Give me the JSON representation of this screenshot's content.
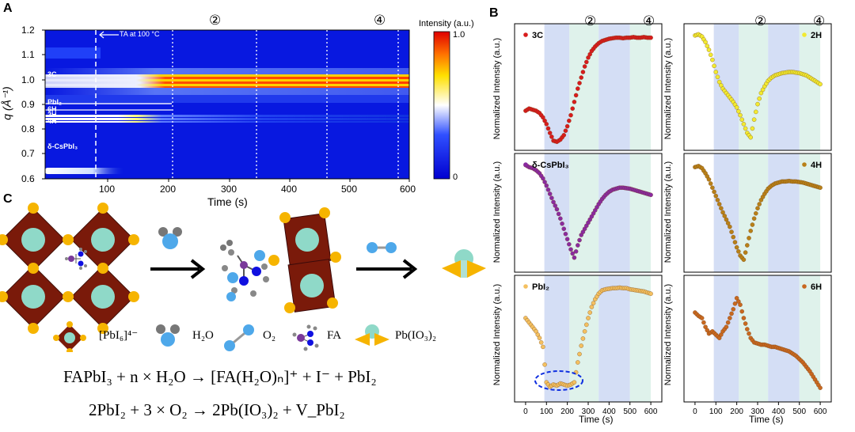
{
  "panelA": {
    "letter": "A",
    "ylabel": "q (Å⁻¹)",
    "xlabel": "Time (s)",
    "yticks": [
      "1.2",
      "1.1",
      "1.0",
      "0.9",
      "0.8",
      "0.7",
      "0.6"
    ],
    "xticks": [
      "100",
      "200",
      "300",
      "400",
      "500",
      "600"
    ],
    "annotation": "TA at 100 °C",
    "phases": [
      "3C",
      "PbI₂",
      "6H",
      "2H",
      "4H",
      "δ-CsPbI₃"
    ],
    "stage_marks": [
      "②",
      "④"
    ],
    "colorbar": {
      "title": "Intensity (a.u.)",
      "max": "1.0",
      "min": "0"
    },
    "colors": {
      "low": "#0010e0",
      "mid": "#ffffff",
      "high": "#ff2000"
    }
  },
  "panelB": {
    "letter": "B",
    "ylabel": "Normalized Intensity (a.u.)",
    "xlabel": "Time (s)",
    "xticks": [
      "0",
      "100",
      "200",
      "300",
      "400",
      "500",
      "600"
    ],
    "stage_marks": [
      "②",
      "④"
    ],
    "subplots": [
      {
        "name": "3C",
        "color": "#d81c1c",
        "y": [
          0.3,
          0.32,
          0.31,
          0.3,
          0.28,
          0.24,
          0.18,
          0.1,
          0.03,
          0.02,
          0.04,
          0.08,
          0.16,
          0.26,
          0.38,
          0.5,
          0.6,
          0.7,
          0.78,
          0.84,
          0.88,
          0.91,
          0.93,
          0.94,
          0.95,
          0.955,
          0.96,
          0.96,
          0.955,
          0.96,
          0.96,
          0.965,
          0.96,
          0.96,
          0.965,
          0.96,
          0.96
        ]
      },
      {
        "name": "2H",
        "color": "#f2ea30",
        "y": [
          0.98,
          0.99,
          0.97,
          0.92,
          0.85,
          0.76,
          0.65,
          0.56,
          0.5,
          0.46,
          0.42,
          0.38,
          0.33,
          0.26,
          0.18,
          0.1,
          0.06,
          0.22,
          0.36,
          0.46,
          0.52,
          0.57,
          0.6,
          0.62,
          0.63,
          0.64,
          0.645,
          0.65,
          0.65,
          0.645,
          0.64,
          0.63,
          0.62,
          0.6,
          0.58,
          0.56,
          0.54
        ]
      },
      {
        "name": "δ-CsPbI₃",
        "color": "#8a2aa0",
        "y": [
          0.98,
          0.96,
          0.95,
          0.93,
          0.9,
          0.85,
          0.78,
          0.7,
          0.62,
          0.55,
          0.46,
          0.36,
          0.26,
          0.16,
          0.08,
          0.2,
          0.3,
          0.36,
          0.42,
          0.48,
          0.54,
          0.6,
          0.65,
          0.69,
          0.72,
          0.74,
          0.75,
          0.76,
          0.76,
          0.755,
          0.75,
          0.74,
          0.73,
          0.72,
          0.71,
          0.7,
          0.69
        ]
      },
      {
        "name": "4H",
        "color": "#b88018",
        "y": [
          0.96,
          0.97,
          0.95,
          0.9,
          0.84,
          0.76,
          0.68,
          0.6,
          0.52,
          0.45,
          0.38,
          0.28,
          0.18,
          0.1,
          0.06,
          0.2,
          0.34,
          0.46,
          0.56,
          0.64,
          0.7,
          0.75,
          0.78,
          0.8,
          0.81,
          0.82,
          0.82,
          0.825,
          0.82,
          0.82,
          0.815,
          0.81,
          0.8,
          0.79,
          0.78,
          0.77,
          0.76
        ]
      },
      {
        "name": "PbI₂",
        "color": "#f4c060",
        "y": [
          0.7,
          0.66,
          0.62,
          0.58,
          0.52,
          0.44,
          0.12,
          0.08,
          0.1,
          0.09,
          0.11,
          0.1,
          0.09,
          0.1,
          0.12,
          0.3,
          0.45,
          0.58,
          0.7,
          0.8,
          0.87,
          0.92,
          0.95,
          0.96,
          0.965,
          0.97,
          0.97,
          0.975,
          0.97,
          0.97,
          0.96,
          0.955,
          0.95,
          0.945,
          0.94,
          0.93,
          0.92
        ]
      },
      {
        "name": "6H",
        "color": "#c86820",
        "y": [
          0.75,
          0.72,
          0.7,
          0.62,
          0.56,
          0.58,
          0.55,
          0.52,
          0.58,
          0.62,
          0.7,
          0.78,
          0.88,
          0.82,
          0.7,
          0.6,
          0.52,
          0.48,
          0.47,
          0.46,
          0.46,
          0.45,
          0.44,
          0.44,
          0.43,
          0.42,
          0.41,
          0.4,
          0.38,
          0.36,
          0.33,
          0.3,
          0.26,
          0.22,
          0.17,
          0.12,
          0.07
        ]
      }
    ]
  },
  "panelC": {
    "letter": "C",
    "legend": {
      "pbi6": "[PbI₆]⁴⁻",
      "h2o": "H₂O",
      "o2": "O₂",
      "fa": "FA",
      "pbio3": "Pb(IO₃)₂"
    },
    "equation1": "FAPbI₃ + n × H₂O → [FA(H₂O)ₙ]⁺ + I⁻ + PbI₂",
    "equation2": "2PbI₂ + 3 × O₂ → 2Pb(IO₃)₂ + V_PbI₂"
  }
}
